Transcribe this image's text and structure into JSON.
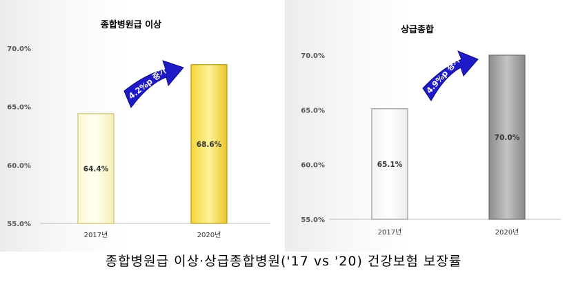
{
  "caption": "종합병원급 이상·상급종합병원('17 vs '20) 건강보험 보장률",
  "chart_data": [
    {
      "type": "bar",
      "title": "종합병원급 이상",
      "categories": [
        "2017년",
        "2020년"
      ],
      "values": [
        64.4,
        68.6
      ],
      "value_labels": [
        "64.4%",
        "68.6%"
      ],
      "ylim": [
        55.0,
        70.0
      ],
      "yticks": [
        "55.0%",
        "60.0%",
        "65.0%",
        "70.0%"
      ],
      "annotation": "4.2%p 증가",
      "colors": [
        "#fffde0",
        "#ffe66e"
      ],
      "arrow_color": "#1f1ac8",
      "grid": false
    },
    {
      "type": "bar",
      "title": "상급종합",
      "categories": [
        "2017년",
        "2020년"
      ],
      "values": [
        65.1,
        70.0
      ],
      "value_labels": [
        "65.1%",
        "70.0%"
      ],
      "ylim": [
        55.0,
        70.0
      ],
      "yticks": [
        "55.0%",
        "60.0%",
        "65.0%",
        "70.0%"
      ],
      "annotation": "4.9%p 증가",
      "colors": [
        "#ffffff",
        "#a8a8a8"
      ],
      "arrow_color": "#1f1ac8",
      "grid": false
    }
  ]
}
